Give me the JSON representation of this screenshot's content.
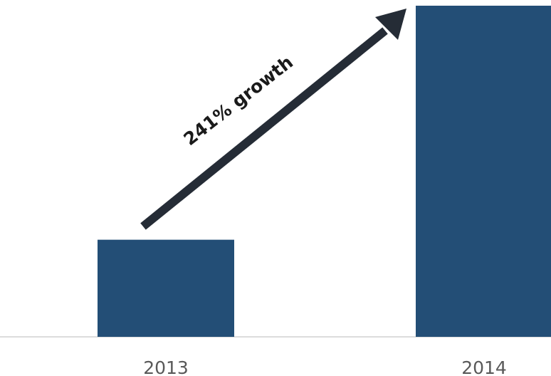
{
  "chart_data": {
    "type": "bar",
    "title": "",
    "xlabel": "",
    "ylabel": "",
    "categories": [
      "2013",
      "2014"
    ],
    "values": [
      1.0,
      3.41
    ],
    "ylim": [
      0,
      3.41
    ],
    "grid": false,
    "annotation": {
      "text": "241% growth",
      "type": "arrow",
      "from": "2013",
      "to": "2014"
    }
  },
  "colors": {
    "bar": "#234e76",
    "arrow": "#252c36",
    "axis": "#d0d0d0",
    "tick_text": "#595959"
  }
}
